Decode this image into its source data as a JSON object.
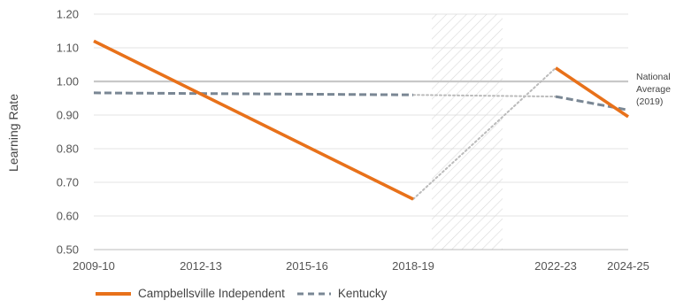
{
  "chart_data": {
    "type": "line",
    "ylabel": "Learning Rate",
    "xlabel": "",
    "x_ticks": [
      "2009-10",
      "2012-13",
      "2015-16",
      "2018-19",
      "2022-23",
      "2024-25"
    ],
    "y_ticks": [
      "0.50",
      "0.60",
      "0.70",
      "0.80",
      "0.90",
      "1.00",
      "1.10",
      "1.20"
    ],
    "ylim": [
      0.5,
      1.2
    ],
    "grid": true,
    "reference_line": {
      "value": 1.0,
      "label_lines": [
        "National",
        "Average",
        "(2019)"
      ]
    },
    "shaded_gap": {
      "from_index": 3,
      "to_index": 4,
      "pattern": "diagonal-hatch"
    },
    "series": [
      {
        "name": "Campbellsville Independent",
        "color": "#E8711A",
        "style": "solid",
        "segments": [
          {
            "x": [
              "2009-10",
              "2018-19"
            ],
            "y": [
              1.12,
              0.65
            ]
          },
          {
            "x": [
              "2022-23",
              "2024-25"
            ],
            "y": [
              1.04,
              0.895
            ]
          }
        ],
        "gap_connector": {
          "x": [
            "2018-19",
            "2022-23"
          ],
          "y": [
            0.65,
            1.04
          ],
          "style": "dotted",
          "color": "#BBBBBB"
        }
      },
      {
        "name": "Kentucky",
        "color": "#7A8794",
        "style": "dashed",
        "segments": [
          {
            "x": [
              "2009-10",
              "2018-19"
            ],
            "y": [
              0.966,
              0.96
            ]
          },
          {
            "x": [
              "2022-23",
              "2024-25"
            ],
            "y": [
              0.955,
              0.915
            ]
          }
        ],
        "gap_connector": {
          "x": [
            "2018-19",
            "2022-23"
          ],
          "y": [
            0.96,
            0.955
          ],
          "style": "dotted",
          "color": "#BBBBBB"
        }
      }
    ],
    "legend_position": "bottom-left"
  },
  "colors": {
    "grid": "#E3E3E3",
    "reference": "#C8C8C8",
    "axis": "#BBBBBB",
    "hatch": "#D8D8D8"
  }
}
